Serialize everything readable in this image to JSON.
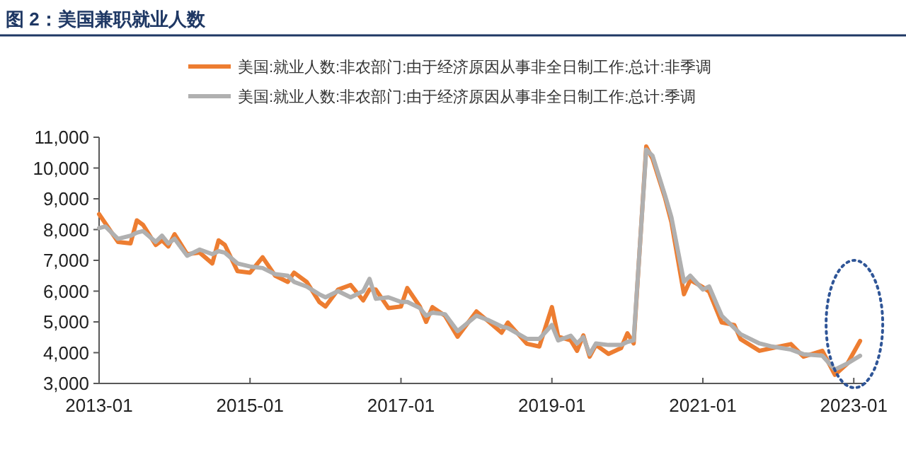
{
  "chart_data": {
    "type": "line",
    "title": "图 2：美国兼职就业人数",
    "legend": "top",
    "x": [
      "2013-01",
      "2013-02",
      "2013-04",
      "2013-06",
      "2013-07",
      "2013-08",
      "2013-10",
      "2013-11",
      "2013-12",
      "2014-01",
      "2014-03",
      "2014-05",
      "2014-07",
      "2014-08",
      "2014-09",
      "2014-11",
      "2015-01",
      "2015-03",
      "2015-05",
      "2015-07",
      "2015-08",
      "2015-10",
      "2015-12",
      "2016-01",
      "2016-03",
      "2016-05",
      "2016-07",
      "2016-08",
      "2016-09",
      "2016-11",
      "2017-01",
      "2017-02",
      "2017-04",
      "2017-05",
      "2017-06",
      "2017-08",
      "2017-10",
      "2018-01",
      "2018-03",
      "2018-05",
      "2018-06",
      "2018-09",
      "2018-11",
      "2019-01",
      "2019-02",
      "2019-04",
      "2019-05",
      "2019-06",
      "2019-07",
      "2019-08",
      "2019-10",
      "2019-12",
      "2020-01",
      "2020-02",
      "2020-04",
      "2020-05",
      "2020-07",
      "2020-08",
      "2020-10",
      "2020-11",
      "2021-01",
      "2021-02",
      "2021-04",
      "2021-06",
      "2021-07",
      "2021-10",
      "2021-12",
      "2022-03",
      "2022-05",
      "2022-08",
      "2022-10",
      "2022-12",
      "2023-02"
    ],
    "series": [
      {
        "name": "美国:就业人数:非农部门:由于经济原因从事非全日制工作:总计:非季调",
        "color": "#ed7d31",
        "values": [
          8500,
          8200,
          7600,
          7550,
          8300,
          8150,
          7500,
          7650,
          7450,
          7850,
          7200,
          7250,
          6900,
          7650,
          7500,
          6650,
          6600,
          7100,
          6500,
          6300,
          6600,
          6300,
          5650,
          5500,
          6050,
          6200,
          5700,
          6050,
          6050,
          5450,
          5500,
          6100,
          5500,
          5000,
          5480,
          5200,
          4520,
          5340,
          5000,
          4650,
          4980,
          4290,
          4200,
          5480,
          4520,
          4400,
          4060,
          4560,
          3870,
          4250,
          3960,
          4150,
          4630,
          4300,
          10700,
          10300,
          9020,
          8240,
          5900,
          6360,
          6130,
          5980,
          4980,
          4900,
          4440,
          4060,
          4150,
          4280,
          3870,
          4060,
          3280,
          3650,
          4380
        ]
      },
      {
        "name": "美国:就业人数:非农部门:由于经济原因从事非全日制工作:总计:季调",
        "color": "#b0b0b0",
        "values": [
          8050,
          8100,
          7700,
          7800,
          7900,
          7950,
          7600,
          7800,
          7550,
          7700,
          7150,
          7350,
          7200,
          7300,
          7250,
          6900,
          6800,
          6750,
          6550,
          6500,
          6300,
          6150,
          5900,
          5800,
          6000,
          5800,
          6000,
          6400,
          5750,
          5800,
          5650,
          5650,
          5450,
          5200,
          5300,
          5250,
          4700,
          5200,
          5050,
          4850,
          4800,
          4450,
          4450,
          4900,
          4400,
          4550,
          4300,
          4500,
          3950,
          4300,
          4250,
          4250,
          4350,
          4400,
          10600,
          10400,
          9100,
          8400,
          6300,
          6500,
          6050,
          6150,
          5200,
          4800,
          4600,
          4300,
          4200,
          4100,
          3950,
          3900,
          3450,
          3650,
          3900
        ]
      }
    ],
    "xlim": [
      "2013-01",
      "2023-03"
    ],
    "xticks": [
      "2013-01",
      "2015-01",
      "2017-01",
      "2019-01",
      "2021-01",
      "2023-01"
    ],
    "ylim": [
      3000,
      11000
    ],
    "yticks": [
      {
        "value": 3000,
        "label": "3,000"
      },
      {
        "value": 4000,
        "label": "4,000"
      },
      {
        "value": 5000,
        "label": "5,000"
      },
      {
        "value": 6000,
        "label": "6,000"
      },
      {
        "value": 7000,
        "label": "7,000"
      },
      {
        "value": 8000,
        "label": "8,000"
      },
      {
        "value": 9000,
        "label": "9,000"
      },
      {
        "value": 10000,
        "label": "10,000"
      },
      {
        "value": 11000,
        "label": "11,000"
      }
    ]
  }
}
